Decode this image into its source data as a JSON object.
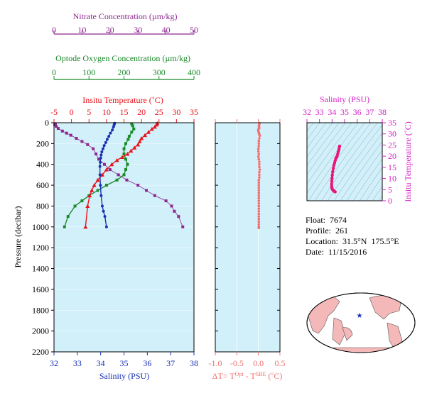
{
  "info": {
    "float_label": "Float:",
    "float_value": "7674",
    "profile_label": "Profile:",
    "profile_value": "261",
    "location_label": "Location:",
    "location_value": "31.5°N  175.5°E",
    "date_label": "Date:",
    "date_value": "11/15/2016"
  },
  "colors": {
    "nitrate": "#8e278f",
    "oxygen": "#1a8a2a",
    "temperature": "#e8141c",
    "salinity": "#1a32b4",
    "delta": "#f07070",
    "ts_axis": "#d61fc8",
    "ts_points": "#e8147a",
    "panel_bg": "#d2f0fa",
    "land": "#f4b8b8",
    "ocean": "#ffffff"
  },
  "chart_data": [
    {
      "type": "line",
      "axes": {
        "nitrate": {
          "label": "Nitrate Concentration (µm/kg)",
          "range": [
            0,
            50
          ],
          "ticks": [
            "0",
            "10",
            "20",
            "30",
            "40",
            "50"
          ]
        },
        "oxygen": {
          "label": "Optode Oxygen Concentration (µm/kg)",
          "range": [
            0,
            400
          ],
          "ticks": [
            "0",
            "100",
            "200",
            "300",
            "400"
          ]
        },
        "temperature": {
          "label": "Insitu Temperature (˚C)",
          "range": [
            -5,
            35
          ],
          "ticks": [
            "-5",
            "0",
            "5",
            "10",
            "15",
            "20",
            "25",
            "30",
            "35"
          ]
        },
        "salinity": {
          "label": "Salinity (PSU)",
          "range": [
            32,
            38
          ],
          "ticks": [
            "32",
            "33",
            "34",
            "35",
            "36",
            "37",
            "38"
          ]
        },
        "pressure": {
          "label": "Pressure (decibar)",
          "range": [
            0,
            2200
          ],
          "ticks": [
            "0",
            "200",
            "400",
            "600",
            "800",
            "1000",
            "1200",
            "1400",
            "1600",
            "1800",
            "2000",
            "2200"
          ],
          "inverted": true
        }
      },
      "series": [
        {
          "key": "nitrate",
          "axis": "nitrate",
          "x": [
            0.5,
            0.3,
            0.8,
            1.5,
            3,
            4.5,
            6,
            8,
            10,
            12,
            14,
            15,
            16,
            18,
            20,
            23,
            26,
            30,
            33,
            36,
            40,
            42,
            43,
            44.5,
            46
          ],
          "y": [
            10,
            20,
            35,
            55,
            80,
            100,
            120,
            150,
            180,
            210,
            250,
            300,
            350,
            400,
            450,
            500,
            550,
            600,
            650,
            700,
            750,
            800,
            850,
            900,
            1000
          ]
        },
        {
          "key": "oxygen",
          "axis": "oxygen",
          "x": [
            222,
            225,
            228,
            222,
            215,
            212,
            205,
            200,
            200,
            205,
            210,
            205,
            200,
            180,
            150,
            125,
            100,
            80,
            60,
            40,
            30
          ],
          "y": [
            10,
            30,
            60,
            90,
            130,
            160,
            200,
            250,
            300,
            350,
            400,
            450,
            500,
            550,
            600,
            650,
            700,
            750,
            800,
            900,
            1000
          ]
        },
        {
          "key": "temperature",
          "axis": "temperature",
          "x": [
            24.5,
            24.3,
            23.8,
            23,
            22,
            21,
            20,
            19.5,
            19,
            18,
            17,
            16,
            14.5,
            13,
            11.5,
            10,
            8.8,
            7.5,
            6.5,
            5.8,
            5.2,
            4.6,
            4
          ],
          "y": [
            5,
            20,
            40,
            60,
            90,
            120,
            150,
            180,
            210,
            240,
            270,
            300,
            330,
            360,
            400,
            450,
            500,
            550,
            600,
            650,
            700,
            800,
            1000
          ]
        },
        {
          "key": "salinity",
          "axis": "salinity",
          "x": [
            34.6,
            34.58,
            34.55,
            34.5,
            34.42,
            34.35,
            34.28,
            34.22,
            34.15,
            34.1,
            34.05,
            34.02,
            34,
            33.98,
            33.97,
            33.97,
            33.99,
            34.02,
            34.07,
            34.12,
            34.18,
            34.25
          ],
          "y": [
            5,
            20,
            40,
            70,
            100,
            130,
            160,
            190,
            220,
            250,
            280,
            310,
            340,
            380,
            420,
            500,
            600,
            700,
            800,
            850,
            900,
            1000
          ]
        }
      ]
    },
    {
      "type": "scatter",
      "axes": {
        "delta": {
          "label_prefix": "ΔT= T",
          "label_sup1": "Opt",
          "label_mid": " - T",
          "label_sup2": "SBE",
          "label_suffix": " (˚C)",
          "range": [
            -1.0,
            0.5
          ],
          "ticks": [
            "-1.0",
            "-0.5",
            "0.0",
            "0.5"
          ]
        }
      },
      "series": [
        {
          "key": "delta",
          "x": [
            0.02,
            0.02,
            0.01,
            0.02,
            0.0,
            0.0,
            0.01,
            0.02,
            0.03,
            0.02,
            0.01,
            0.01,
            0.01,
            0.0,
            0.0,
            0.01,
            0.0,
            0.01,
            0.02,
            0.02,
            0.02,
            0.03,
            0.02,
            0.02,
            0.02,
            0.01,
            0.01,
            0.01,
            0.01,
            0.01,
            0.01,
            0.01,
            0.01,
            0.01,
            0.01,
            0.01,
            0.01,
            0.01,
            0.01,
            0.01,
            0.01,
            0.01,
            0.01,
            0.01,
            0.01
          ],
          "y": [
            5,
            20,
            35,
            50,
            65,
            80,
            95,
            110,
            125,
            150,
            175,
            200,
            225,
            250,
            275,
            300,
            325,
            350,
            375,
            400,
            425,
            450,
            475,
            500,
            525,
            550,
            575,
            600,
            625,
            650,
            675,
            700,
            725,
            750,
            775,
            800,
            825,
            850,
            875,
            900,
            925,
            950,
            975,
            1000,
            1010
          ]
        }
      ]
    },
    {
      "type": "scatter",
      "axes": {
        "salinity": {
          "label": "Salinity (PSU)",
          "range": [
            32,
            38
          ],
          "ticks": [
            "32",
            "33",
            "34",
            "35",
            "36",
            "37",
            "38"
          ]
        },
        "temperature": {
          "label": "Insitu Temperature (˚C)",
          "range": [
            0,
            35
          ],
          "ticks": [
            "0",
            "5",
            "10",
            "15",
            "20",
            "25",
            "30",
            "35"
          ]
        }
      },
      "series": [
        {
          "key": "ts",
          "x": [
            34.6,
            34.58,
            34.55,
            34.5,
            34.45,
            34.4,
            34.35,
            34.3,
            34.25,
            34.2,
            34.15,
            34.1,
            34.05,
            34.02,
            34.0,
            33.98,
            33.97,
            33.97,
            33.99,
            34.02,
            34.07,
            34.12,
            34.18,
            34.25
          ],
          "y": [
            24.5,
            24,
            23,
            22,
            21,
            20,
            19.5,
            19,
            18,
            17,
            16,
            14.5,
            13,
            11.5,
            10,
            8.8,
            7.5,
            6.5,
            5.8,
            5.2,
            4.8,
            4.5,
            4.2,
            4
          ]
        }
      ]
    }
  ]
}
